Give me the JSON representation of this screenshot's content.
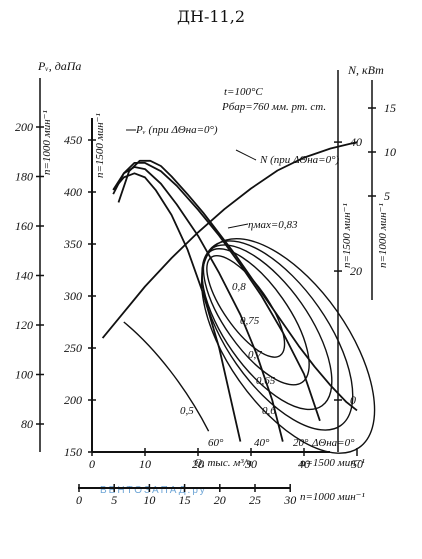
{
  "page": {
    "watermark": "ВЕНТОЗАПАД.ру"
  },
  "chart_data": {
    "type": "line",
    "title": "ДН-11,2",
    "ylabel_left_n1000": "Pᵥ, даПа",
    "ylabel_left_n1500": "Pᵥ, даПа",
    "ylabel_right": "N, кВт",
    "xlabel": "Q, тыс. м³/ч",
    "n1000_label": "n=1000 мин⁻¹",
    "n1500_label": "n=1500 мин⁻¹",
    "conditions": [
      "t=100°C",
      "Pбар=760 мм. рт. ст."
    ],
    "xlim": [
      0,
      60
    ],
    "ylim": [
      150,
      460
    ],
    "x_ticks_n1500": [
      "0",
      "10",
      "20",
      "30",
      "40",
      "50"
    ],
    "x_ticks_n1000": [
      "0",
      "5",
      "10",
      "15",
      "20",
      "25",
      "30"
    ],
    "y_ticks_n1500": [
      "150",
      "200",
      "250",
      "300",
      "350",
      "400",
      "450"
    ],
    "y_ticks_n1000": [
      "80",
      "100",
      "120",
      "140",
      "160",
      "180",
      "200"
    ],
    "n_ticks_n1500": [
      "0",
      "20",
      "40"
    ],
    "n_ticks_n1000": [
      "5",
      "10",
      "15"
    ],
    "annotations": {
      "pressure_curve": "Pᵥ (при ΔΘна=0°)",
      "power_curve": "N (при ΔΘна=0°)",
      "eta_max": "ηмах=0,83"
    },
    "efficiency_labels": [
      "0,8",
      "0,75",
      "0,7",
      "0,65",
      "0,6",
      "0,5"
    ],
    "angle_labels": [
      "60°",
      "40°",
      "20°",
      "ΔΘна=0°"
    ],
    "series": [
      {
        "name": "Pᵥ (при ΔΘна=0°)",
        "x": [
          5,
          7,
          9,
          11,
          13,
          15,
          18,
          21,
          24,
          27,
          30,
          33,
          36,
          39,
          42,
          45,
          48,
          50
        ],
        "y": [
          390,
          420,
          430,
          430,
          425,
          415,
          398,
          380,
          360,
          340,
          318,
          296,
          274,
          252,
          232,
          214,
          198,
          190
        ]
      },
      {
        "name": "20°",
        "x": [
          4,
          6,
          8,
          10,
          13,
          16,
          20,
          24,
          28,
          32,
          36,
          40,
          43
        ],
        "y": [
          398,
          418,
          428,
          428,
          420,
          406,
          383,
          358,
          330,
          300,
          265,
          225,
          180
        ]
      },
      {
        "name": "40°",
        "x": [
          4,
          6,
          8,
          10,
          13,
          16,
          20,
          24,
          28,
          31,
          34,
          36
        ],
        "y": [
          402,
          418,
          424,
          422,
          408,
          388,
          358,
          322,
          282,
          245,
          200,
          160
        ]
      },
      {
        "name": "60°",
        "x": [
          4,
          6,
          8,
          10,
          12,
          15,
          18,
          21,
          24,
          26,
          28
        ],
        "y": [
          402,
          414,
          418,
          414,
          402,
          378,
          345,
          302,
          250,
          205,
          160
        ]
      },
      {
        "name": "N (при ΔΘна=0°)",
        "x": [
          2,
          6,
          10,
          15,
          20,
          25,
          30,
          35,
          40,
          45,
          50
        ],
        "y_power": [
          9.6,
          13.6,
          17.6,
          22.0,
          26.0,
          29.6,
          32.8,
          35.6,
          37.6,
          39.0,
          40.0
        ]
      }
    ]
  }
}
